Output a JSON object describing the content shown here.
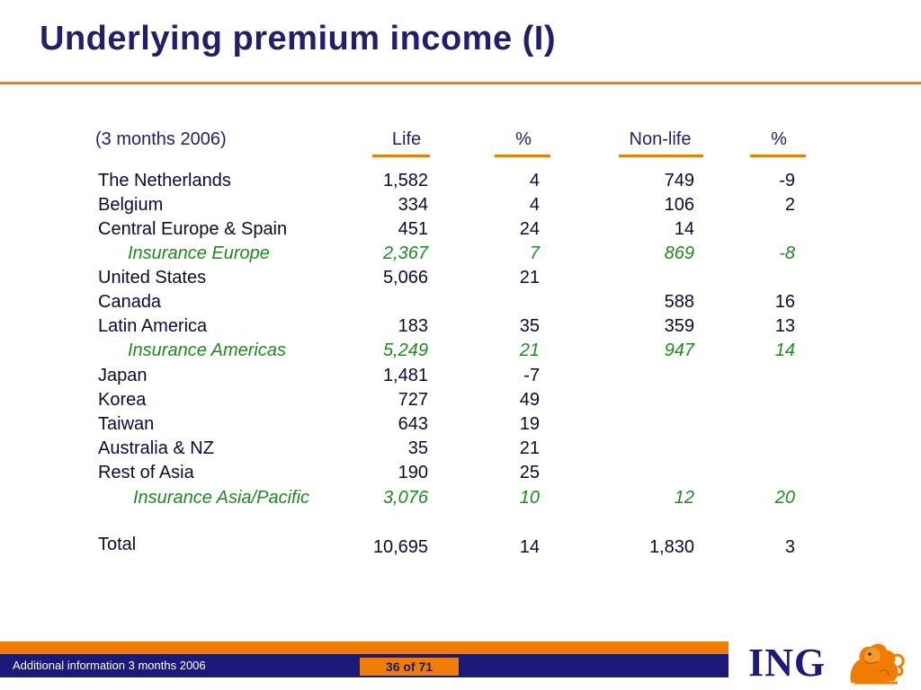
{
  "title": "Underlying premium income (I)",
  "header": {
    "period": "(3 months 2006)",
    "col_life": "Life",
    "col_life_pct": "%",
    "col_nonlife": "Non-life",
    "col_nonlife_pct": "%"
  },
  "rows": [
    {
      "label": "The Netherlands",
      "life": "1,582",
      "life_pct": "4",
      "nonlife": "749",
      "nonlife_pct": "-9"
    },
    {
      "label": "Belgium",
      "life": "334",
      "life_pct": "4",
      "nonlife": "106",
      "nonlife_pct": "2"
    },
    {
      "label": "Central Europe & Spain",
      "life": "451",
      "life_pct": "24",
      "nonlife": "14",
      "nonlife_pct": ""
    },
    {
      "label": "Insurance Europe",
      "life": "2,367",
      "life_pct": "7",
      "nonlife": "869",
      "nonlife_pct": "-8"
    },
    {
      "label": "United States",
      "life": "5,066",
      "life_pct": "21",
      "nonlife": "",
      "nonlife_pct": ""
    },
    {
      "label": "Canada",
      "life": "",
      "life_pct": "",
      "nonlife": "588",
      "nonlife_pct": "16"
    },
    {
      "label": "Latin America",
      "life": "183",
      "life_pct": "35",
      "nonlife": "359",
      "nonlife_pct": "13"
    },
    {
      "label": "Insurance Americas",
      "life": "5,249",
      "life_pct": "21",
      "nonlife": "947",
      "nonlife_pct": "14"
    },
    {
      "label": "Japan",
      "life": "1,481",
      "life_pct": "-7",
      "nonlife": "",
      "nonlife_pct": ""
    },
    {
      "label": "Korea",
      "life": "727",
      "life_pct": "49",
      "nonlife": "",
      "nonlife_pct": ""
    },
    {
      "label": "Taiwan",
      "life": "643",
      "life_pct": "19",
      "nonlife": "",
      "nonlife_pct": ""
    },
    {
      "label": "Australia & NZ",
      "life": "35",
      "life_pct": "21",
      "nonlife": "",
      "nonlife_pct": ""
    },
    {
      "label": "Rest of Asia",
      "life": "190",
      "life_pct": "25",
      "nonlife": "",
      "nonlife_pct": ""
    },
    {
      "label": "Insurance Asia/Pacific",
      "life": "3,076",
      "life_pct": "10",
      "nonlife": "12",
      "nonlife_pct": "20"
    },
    {
      "label": "Total",
      "life": "10,695",
      "life_pct": "14",
      "nonlife": "1,830",
      "nonlife_pct": "3"
    }
  ],
  "footer": {
    "left_text": "Additional information 3 months 2006",
    "page": "36 of 71",
    "logo_text": "ING"
  },
  "colors": {
    "title": "#1f1f6e",
    "accent_orange": "#f07d00",
    "subtotal_green": "#1e8a1e",
    "footer_navy": "#1a1a7a"
  }
}
